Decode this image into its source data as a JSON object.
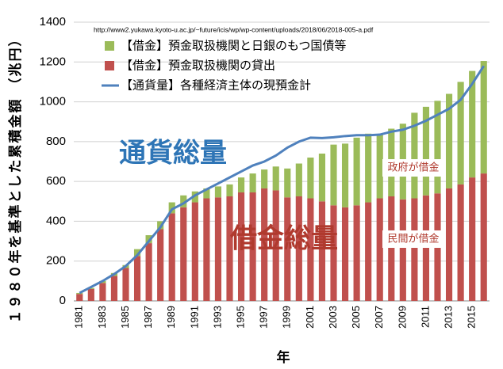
{
  "chart_data": {
    "type": "bar",
    "source_url": "http://www2.yukawa.kyoto-u.ac.jp/~future/icis/wp/wp-content/uploads/2018/06/2018-005-a.pdf",
    "ylabel": "１９８０年を基準とした累積金額 （兆円）",
    "xlabel": "年",
    "categories": [
      "1981",
      null,
      "1983",
      null,
      "1985",
      null,
      "1987",
      null,
      "1989",
      null,
      "1991",
      null,
      "1993",
      null,
      "1995",
      null,
      "1997",
      null,
      "1999",
      null,
      "2001",
      null,
      "2003",
      null,
      "2005",
      null,
      "2007",
      null,
      "2009",
      null,
      "2011",
      null,
      "2013",
      null,
      "2015",
      null
    ],
    "series": [
      {
        "name": "【借金】預金取扱機関と日銀のもつ国債等",
        "type": "bar",
        "color": "#9bbb59",
        "values": [
          5,
          5,
          10,
          15,
          15,
          35,
          40,
          40,
          55,
          60,
          55,
          50,
          55,
          60,
          75,
          95,
          95,
          120,
          145,
          165,
          205,
          240,
          305,
          320,
          340,
          345,
          320,
          340,
          380,
          430,
          445,
          465,
          475,
          515,
          535,
          565
        ]
      },
      {
        "name": "【借金】預金取扱機関の貸出",
        "type": "bar",
        "color": "#c0504d",
        "values": [
          35,
          60,
          90,
          125,
          165,
          225,
          290,
          360,
          440,
          470,
          495,
          515,
          520,
          525,
          545,
          545,
          565,
          555,
          520,
          525,
          515,
          500,
          480,
          470,
          480,
          495,
          515,
          525,
          510,
          515,
          530,
          540,
          565,
          585,
          620,
          640
        ]
      },
      {
        "name": "【通貨量】各種経済主体の現預金計",
        "type": "line",
        "color": "#4f81bd",
        "values": [
          40,
          70,
          100,
          135,
          175,
          230,
          300,
          370,
          460,
          490,
          530,
          560,
          590,
          620,
          650,
          680,
          700,
          730,
          770,
          800,
          820,
          818,
          822,
          828,
          832,
          832,
          835,
          850,
          860,
          880,
          905,
          935,
          965,
          1010,
          1090,
          1180
        ]
      }
    ],
    "annotations": [
      "通貨総量",
      "借金総量",
      "政府が借金",
      "民間が借金"
    ],
    "ylim": [
      0,
      1400
    ],
    "yticks": [
      0,
      200,
      400,
      600,
      800,
      1000,
      1200,
      1400
    ],
    "grid": true
  }
}
